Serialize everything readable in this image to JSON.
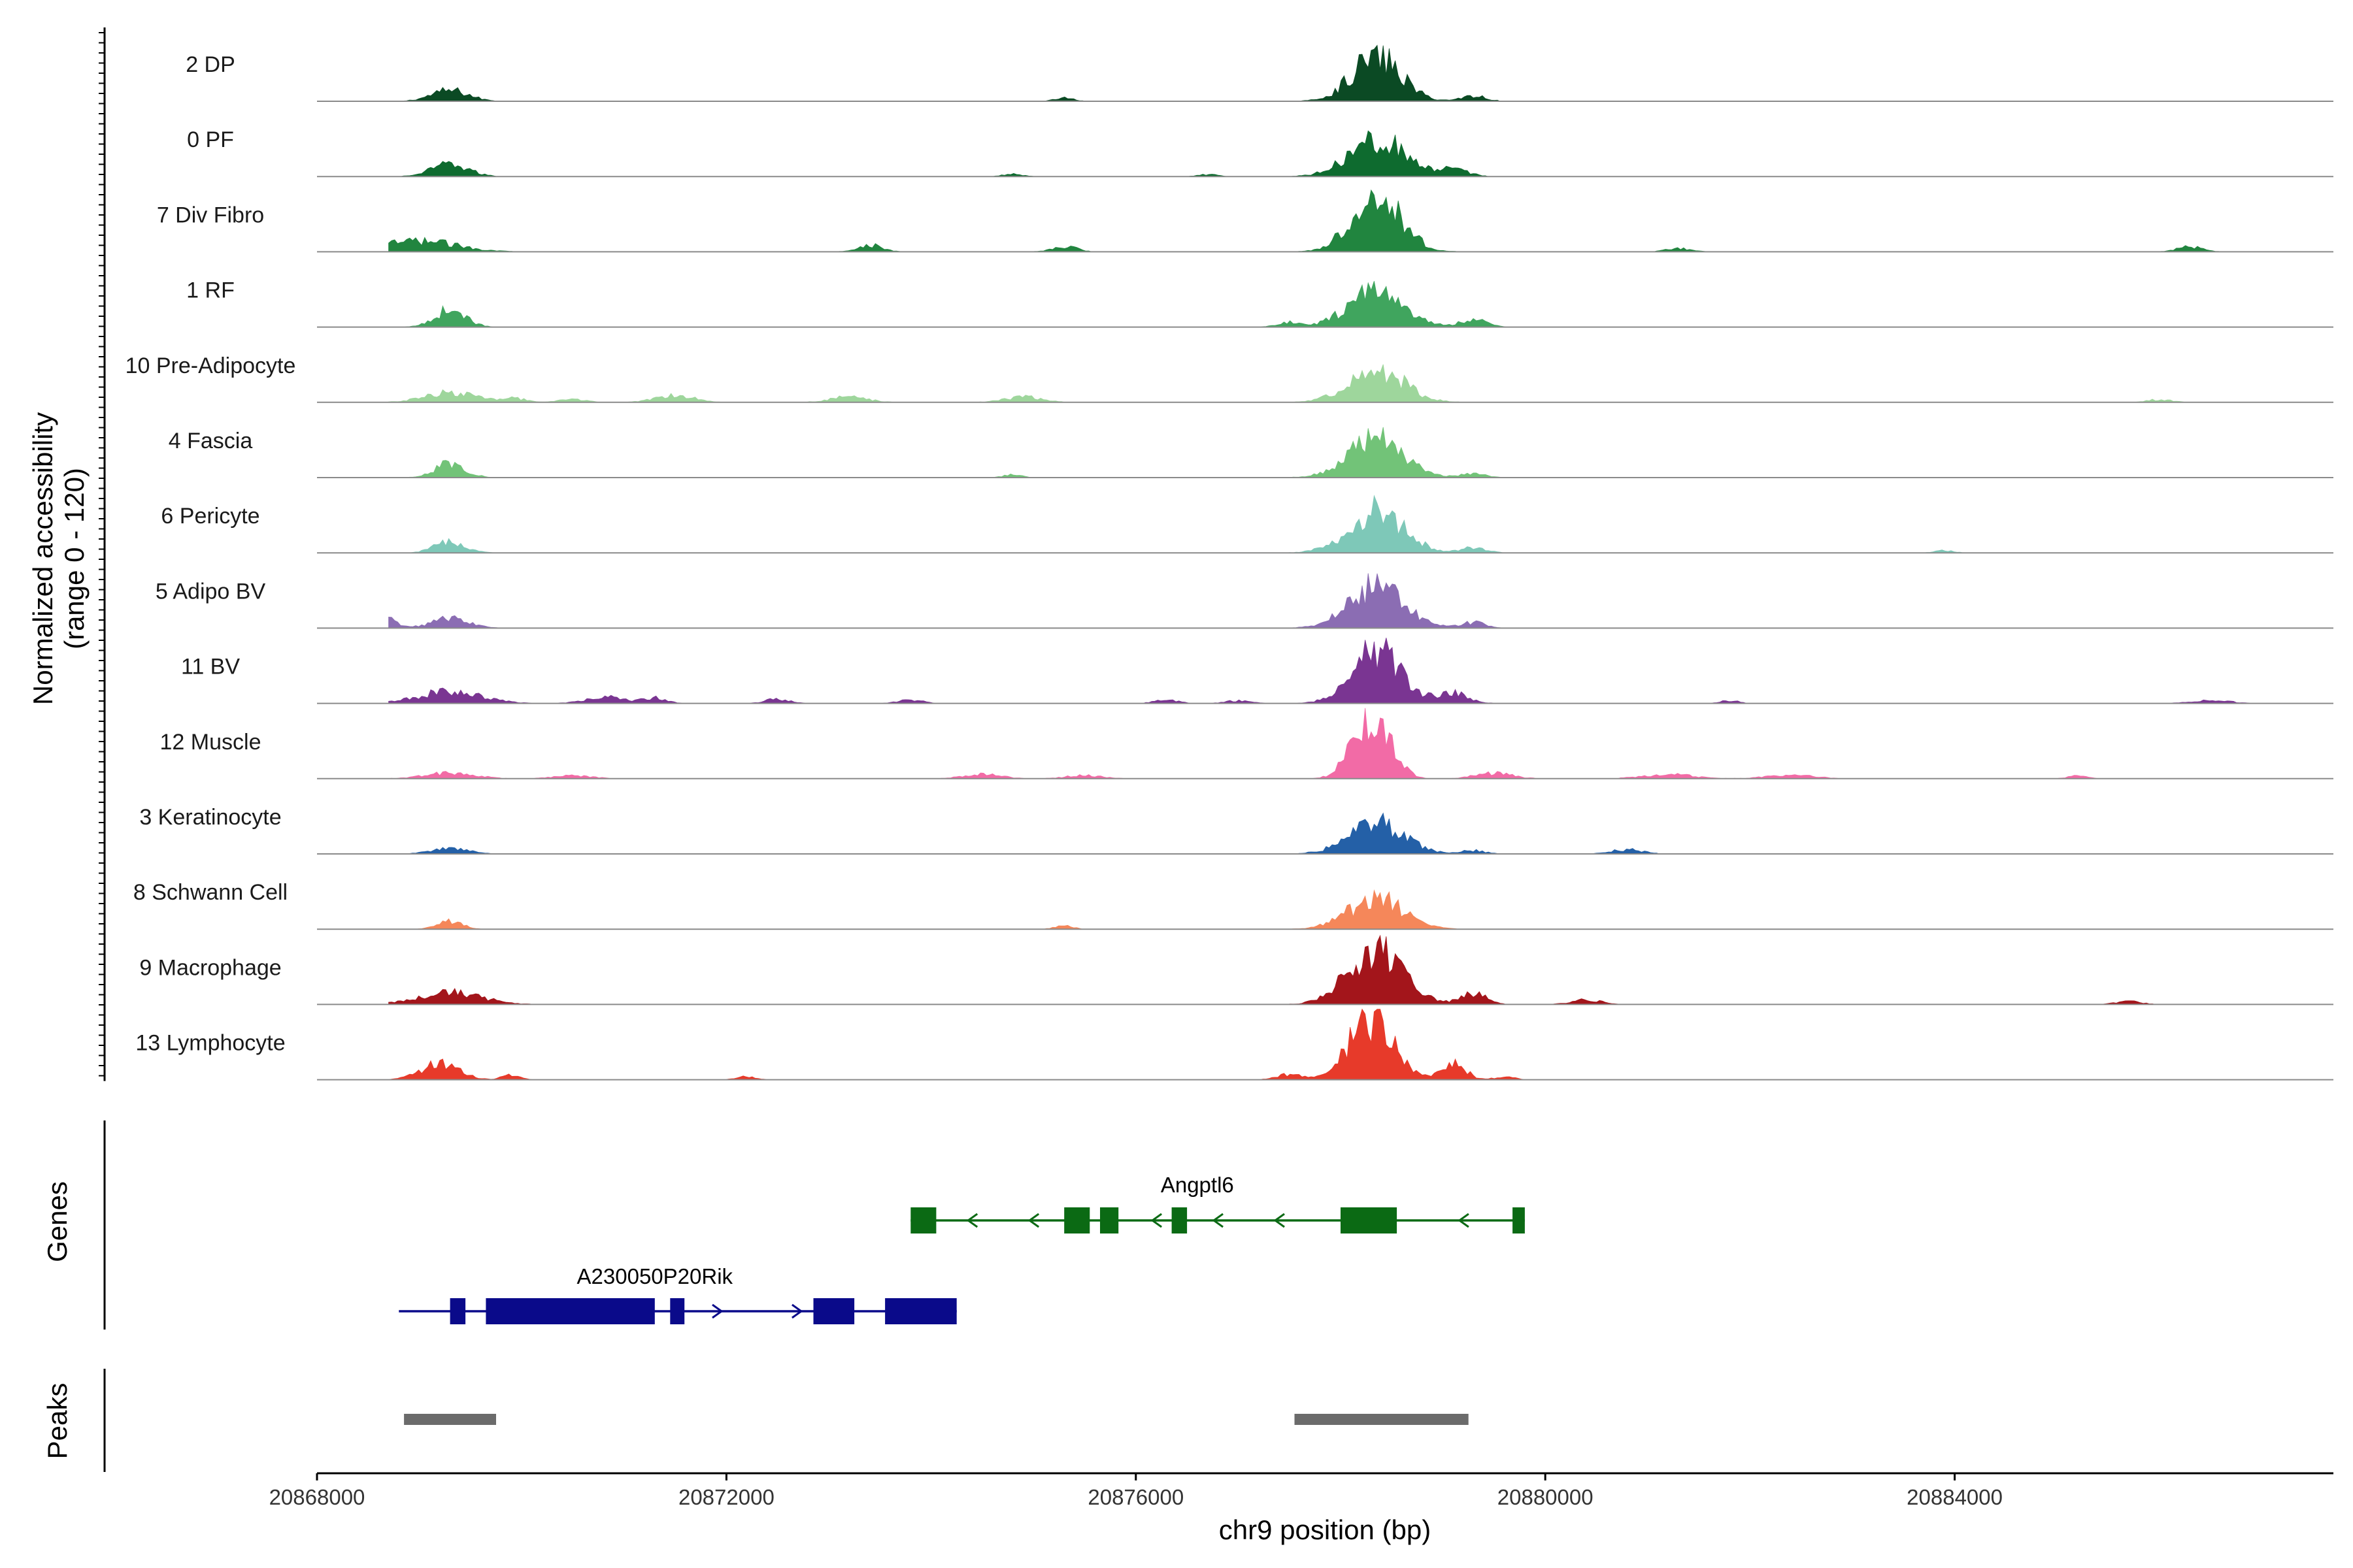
{
  "chart_data": {
    "type": "area",
    "title": "",
    "ylabel_lines": [
      "Normalized accessibility",
      "(range 0 - 120)"
    ],
    "y_range": [
      0,
      120
    ],
    "xlabel": "chr9 position (bp)",
    "x_range": [
      20868000,
      20887700
    ],
    "x_ticks": [
      20868000,
      20872000,
      20876000,
      20880000,
      20884000
    ],
    "x_tick_labels": [
      "20868000",
      "20872000",
      "20876000",
      "20880000",
      "20884000"
    ],
    "tracks": [
      {
        "name": "2 DP",
        "color": "#0b4a24",
        "peaks": [
          [
            20869300,
            20,
            300
          ],
          [
            20878350,
            80,
            400
          ],
          [
            20879300,
            10,
            200
          ],
          [
            20875300,
            6,
            150
          ]
        ]
      },
      {
        "name": "0 PF",
        "color": "#0e6b2f",
        "peaks": [
          [
            20869300,
            22,
            300
          ],
          [
            20878350,
            70,
            450
          ],
          [
            20879100,
            12,
            250
          ],
          [
            20874800,
            5,
            150
          ],
          [
            20876700,
            4,
            150
          ]
        ]
      },
      {
        "name": "7 Div Fibro",
        "color": "#21853f",
        "peaks": [
          [
            20869000,
            20,
            600
          ],
          [
            20878350,
            105,
            400
          ],
          [
            20873400,
            12,
            200
          ],
          [
            20875300,
            10,
            200
          ],
          [
            20881300,
            6,
            200
          ],
          [
            20886300,
            9,
            200
          ]
        ]
      },
      {
        "name": "1 RF",
        "color": "#40a55e",
        "peaks": [
          [
            20869300,
            32,
            250
          ],
          [
            20878350,
            65,
            450
          ],
          [
            20879300,
            15,
            200
          ],
          [
            20877500,
            8,
            200
          ]
        ]
      },
      {
        "name": "10 Pre-Adipocyte",
        "color": "#9ed69c",
        "peaks": [
          [
            20869300,
            18,
            400
          ],
          [
            20878350,
            60,
            450
          ],
          [
            20871500,
            14,
            300
          ],
          [
            20873200,
            10,
            300
          ],
          [
            20874900,
            10,
            300
          ],
          [
            20869900,
            8,
            200
          ],
          [
            20870500,
            6,
            200
          ],
          [
            20886000,
            5,
            200
          ]
        ]
      },
      {
        "name": "4 Fascia",
        "color": "#72c378",
        "peaks": [
          [
            20869300,
            26,
            250
          ],
          [
            20878350,
            70,
            450
          ],
          [
            20879300,
            8,
            200
          ],
          [
            20874800,
            5,
            150
          ]
        ]
      },
      {
        "name": "6 Pericyte",
        "color": "#7ec8b8",
        "peaks": [
          [
            20869300,
            20,
            250
          ],
          [
            20878350,
            75,
            450
          ],
          [
            20879300,
            10,
            200
          ],
          [
            20883900,
            4,
            150
          ]
        ]
      },
      {
        "name": "5 Adipo BV",
        "color": "#8b6db3",
        "peaks": [
          [
            20869300,
            18,
            300
          ],
          [
            20878350,
            75,
            450
          ],
          [
            20868700,
            16,
            150
          ],
          [
            20879300,
            10,
            200
          ]
        ]
      },
      {
        "name": "11 BV",
        "color": "#7a3592",
        "peaks": [
          [
            20869300,
            22,
            500
          ],
          [
            20878350,
            95,
            400
          ],
          [
            20879100,
            18,
            250
          ],
          [
            20870800,
            12,
            300
          ],
          [
            20871300,
            10,
            200
          ],
          [
            20872500,
            8,
            200
          ],
          [
            20873800,
            6,
            200
          ],
          [
            20876300,
            6,
            200
          ],
          [
            20877000,
            5,
            200
          ],
          [
            20881800,
            5,
            150
          ],
          [
            20886500,
            6,
            300
          ]
        ]
      },
      {
        "name": "12 Muscle",
        "color": "#f26ba6",
        "peaks": [
          [
            20878300,
            110,
            300
          ],
          [
            20869300,
            10,
            400
          ],
          [
            20870500,
            6,
            300
          ],
          [
            20874500,
            8,
            300
          ],
          [
            20875500,
            6,
            300
          ],
          [
            20879500,
            10,
            300
          ],
          [
            20881200,
            8,
            400
          ],
          [
            20882400,
            6,
            400
          ],
          [
            20885200,
            5,
            150
          ]
        ]
      },
      {
        "name": "3 Keratinocyte",
        "color": "#2460a7",
        "peaks": [
          [
            20869300,
            10,
            300
          ],
          [
            20878350,
            55,
            450
          ],
          [
            20880800,
            8,
            250
          ],
          [
            20879300,
            6,
            200
          ]
        ]
      },
      {
        "name": "8 Schwann Cell",
        "color": "#f5875a",
        "peaks": [
          [
            20869300,
            14,
            200
          ],
          [
            20878350,
            55,
            450
          ],
          [
            20875300,
            6,
            150
          ]
        ]
      },
      {
        "name": "9 Macrophage",
        "color": "#a3151b",
        "peaks": [
          [
            20869300,
            22,
            500
          ],
          [
            20878350,
            100,
            450
          ],
          [
            20879300,
            20,
            200
          ],
          [
            20880400,
            8,
            250
          ],
          [
            20885700,
            6,
            200
          ]
        ]
      },
      {
        "name": "13 Lymphocyte",
        "color": "#e73a2a",
        "peaks": [
          [
            20869200,
            30,
            300
          ],
          [
            20878300,
            115,
            350
          ],
          [
            20879100,
            30,
            200
          ],
          [
            20869900,
            8,
            150
          ],
          [
            20872200,
            6,
            150
          ],
          [
            20877500,
            10,
            200
          ],
          [
            20879600,
            6,
            150
          ]
        ]
      }
    ],
    "genes": [
      {
        "name": "Angptl6",
        "color": "#0b6a14",
        "strand": "-",
        "start": 20873800,
        "end": 20879800,
        "exons": [
          [
            20873800,
            20874050
          ],
          [
            20875300,
            20875550
          ],
          [
            20875650,
            20875830
          ],
          [
            20876350,
            20876500
          ],
          [
            20878000,
            20878550
          ],
          [
            20879680,
            20879800
          ]
        ]
      },
      {
        "name": "A230050P20Rik",
        "color": "#0a0a8a",
        "strand": "+",
        "start": 20868800,
        "end": 20874250,
        "exons": [
          [
            20869300,
            20869450
          ],
          [
            20869650,
            20871300
          ],
          [
            20871450,
            20871590
          ],
          [
            20872850,
            20873250
          ],
          [
            20873550,
            20874250
          ]
        ]
      }
    ],
    "genes_label": "Genes",
    "peaks_label": "Peaks",
    "peak_regions": [
      [
        20868850,
        20869750
      ],
      [
        20877550,
        20879250
      ]
    ],
    "peak_color": "#6b6b6b"
  }
}
